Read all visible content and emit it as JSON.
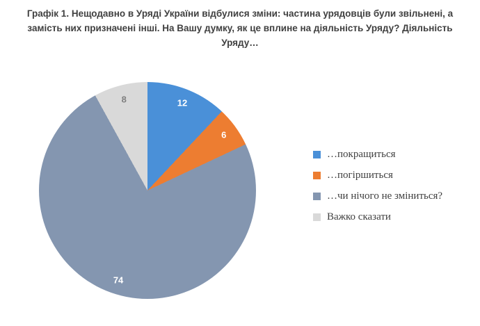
{
  "title": "Графік 1. Нещодавно в Уряді України відбулися зміни: частина урядовців були звільнені, а замість них призначені інші. На Вашу думку, як це вплине на діяльність Уряду? Діяльність Уряду…",
  "chart_data": {
    "type": "pie",
    "labels": [
      "…покращиться",
      "…погіршиться",
      "…чи нічого не зміниться?",
      "Важко сказати"
    ],
    "values": [
      12,
      6,
      74,
      8
    ],
    "colors": [
      "#4a90d8",
      "#ed7d31",
      "#8496b0",
      "#d9d9d9"
    ],
    "data_label_colors": [
      "#ffffff",
      "#ffffff",
      "#ffffff",
      "#7f7f7f"
    ],
    "start_angle_deg": 0,
    "direction": "clockwise",
    "legend_position": "right",
    "units": "percent"
  }
}
